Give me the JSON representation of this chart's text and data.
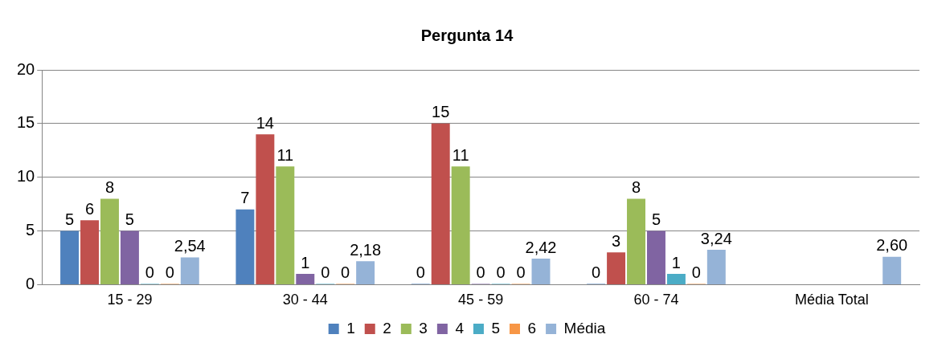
{
  "chart_data": {
    "type": "bar",
    "title": "Pergunta 14",
    "categories": [
      "15 - 29",
      "30 - 44",
      "45 - 59",
      "60 - 74",
      "Média Total"
    ],
    "series": [
      {
        "name": "1",
        "color": "#4f81bd",
        "values": [
          5,
          7,
          0,
          0,
          null
        ],
        "value_labels": [
          "5",
          "7",
          "0",
          "0",
          null
        ]
      },
      {
        "name": "2",
        "color": "#c0504d",
        "values": [
          6,
          14,
          15,
          3,
          null
        ],
        "value_labels": [
          "6",
          "14",
          "15",
          "3",
          null
        ]
      },
      {
        "name": "3",
        "color": "#9bbb59",
        "values": [
          8,
          11,
          11,
          8,
          null
        ],
        "value_labels": [
          "8",
          "11",
          "11",
          "8",
          null
        ]
      },
      {
        "name": "4",
        "color": "#8064a2",
        "values": [
          5,
          1,
          0,
          5,
          null
        ],
        "value_labels": [
          "5",
          "1",
          "0",
          "5",
          null
        ]
      },
      {
        "name": "5",
        "color": "#4bacc6",
        "values": [
          0,
          0,
          0,
          1,
          null
        ],
        "value_labels": [
          "0",
          "0",
          "0",
          "1",
          null
        ]
      },
      {
        "name": "6",
        "color": "#f79646",
        "values": [
          0,
          0,
          0,
          0,
          null
        ],
        "value_labels": [
          "0",
          "0",
          "0",
          "0",
          null
        ]
      },
      {
        "name": "Média",
        "color": "#95b3d7",
        "values": [
          2.54,
          2.18,
          2.42,
          3.24,
          2.6
        ],
        "value_labels": [
          "2,54",
          "2,18",
          "2,42",
          "3,24",
          "2,60"
        ]
      }
    ],
    "ylim": [
      0,
      20
    ],
    "yticks": [
      0,
      5,
      10,
      15,
      20
    ],
    "grid": "y",
    "legend": "bottom"
  }
}
